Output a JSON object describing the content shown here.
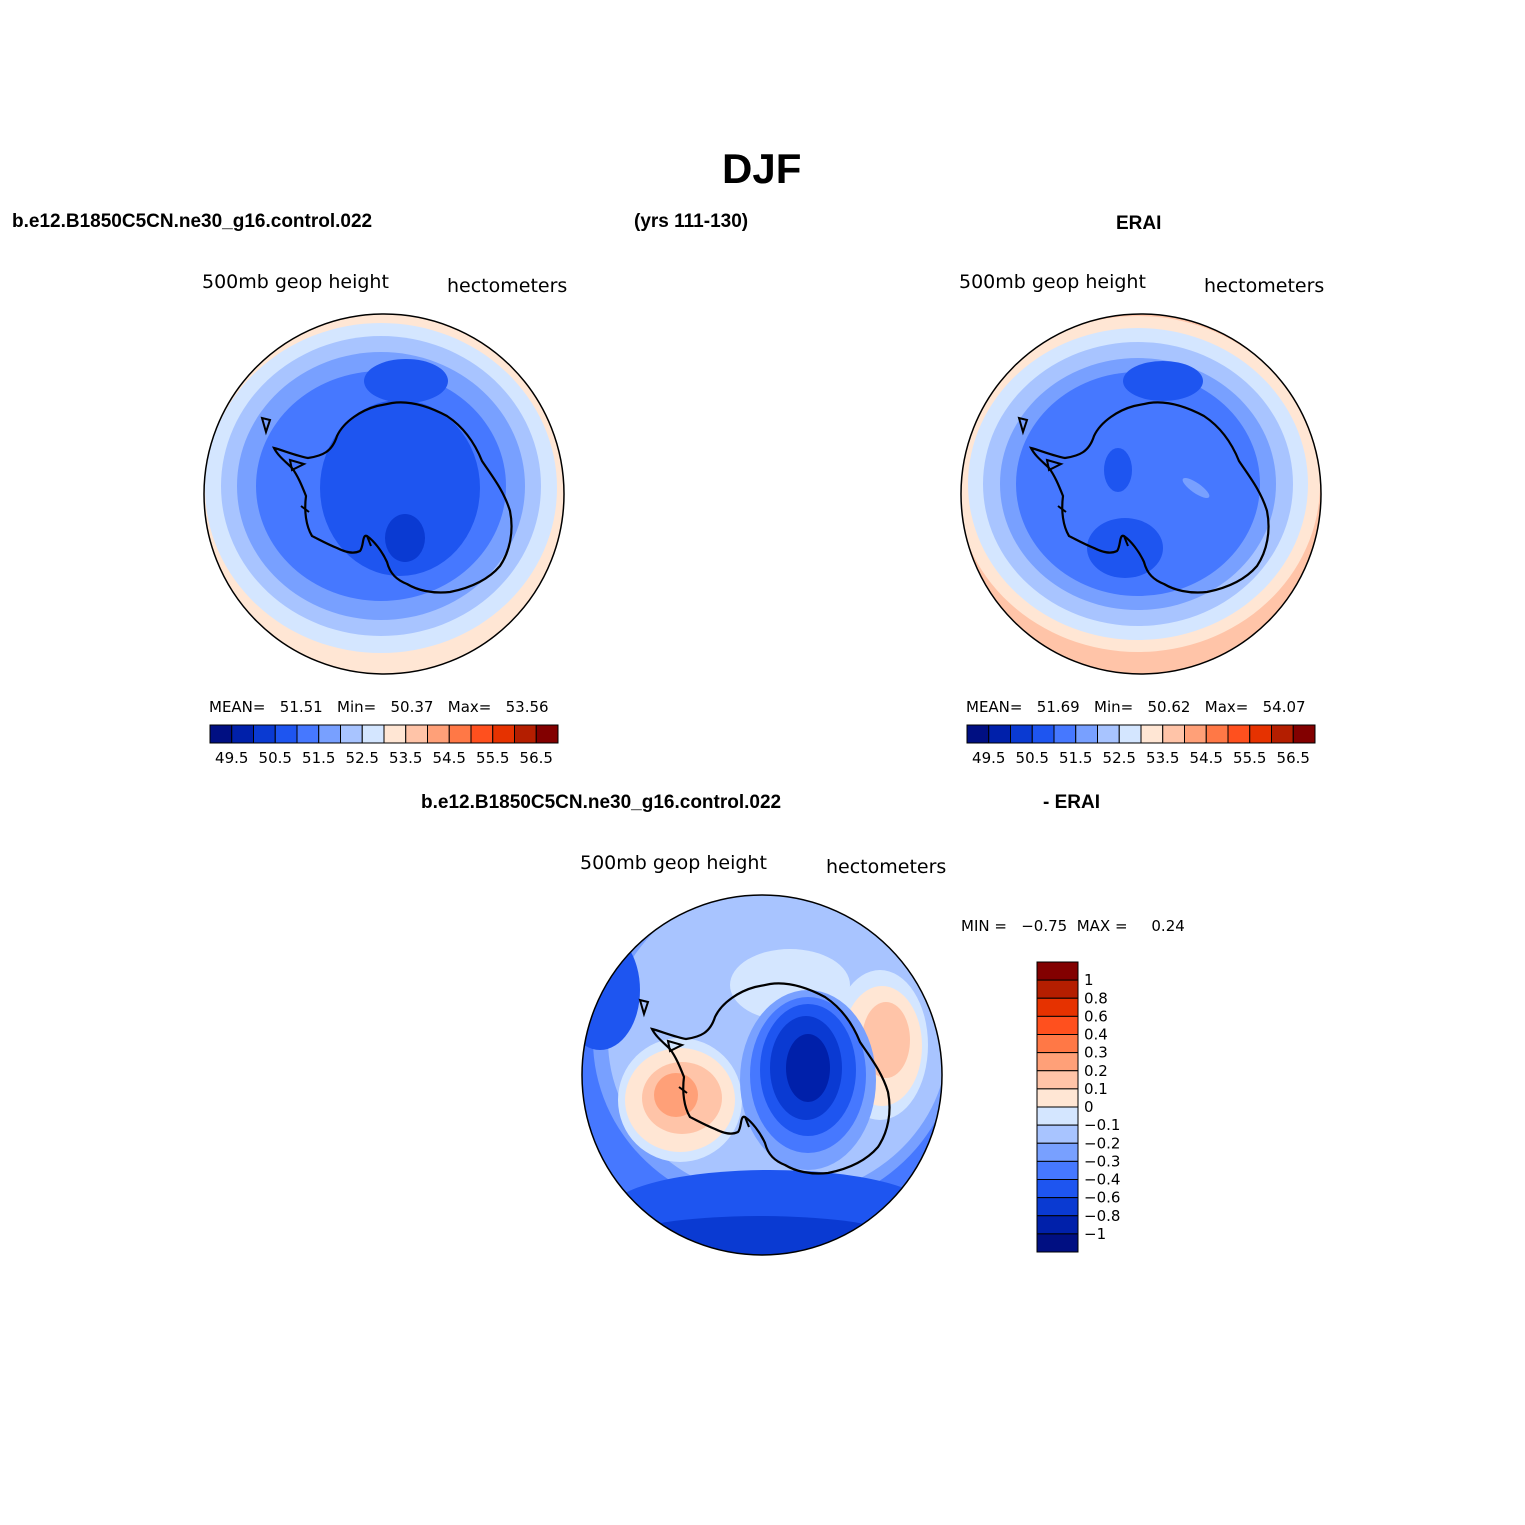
{
  "title": "DJF",
  "top_left": {
    "case": "b.e12.B1850C5CN.ne30_g16.control.022",
    "years": "(yrs 111-130)"
  },
  "top_right": {
    "case": "ERAI"
  },
  "bottom": {
    "case": "b.e12.B1850C5CN.ne30_g16.control.022",
    "minus": "- ERAI"
  },
  "panels": {
    "model": {
      "variable": "500mb  geop  height",
      "units": "hectometers",
      "stats": "MEAN=   51.51   Min=   50.37   Max=   53.56"
    },
    "obs": {
      "variable": "500mb  geop  height",
      "units": "hectometers",
      "stats": "MEAN=   51.69   Min=   50.62   Max=   54.07"
    },
    "diff": {
      "variable": "500mb  geop  height",
      "units": "hectometers",
      "stats": "MIN =   −0.75  MAX =     0.24"
    }
  },
  "abs_colorbar": {
    "colors": [
      "#000f82",
      "#0020aa",
      "#0a3ad2",
      "#1e55f0",
      "#4678ff",
      "#78a0ff",
      "#a8c4ff",
      "#d4e6ff",
      "#ffe6d4",
      "#ffc4a8",
      "#ffa078",
      "#ff7846",
      "#ff501e",
      "#e63200",
      "#b41e00",
      "#820000"
    ],
    "labels": [
      "49.5",
      "50.5",
      "51.5",
      "52.5",
      "53.5",
      "54.5",
      "55.5",
      "56.5"
    ]
  },
  "diff_colorbar": {
    "colors": [
      "#820000",
      "#b41e00",
      "#e63200",
      "#ff501e",
      "#ff7846",
      "#ffa078",
      "#ffc4a8",
      "#ffe6d4",
      "#d4e6ff",
      "#a8c4ff",
      "#78a0ff",
      "#4678ff",
      "#1e55f0",
      "#0a3ad2",
      "#0020aa",
      "#000f82"
    ],
    "labels": [
      "1",
      "0.8",
      "0.6",
      "0.4",
      "0.3",
      "0.2",
      "0.1",
      "0",
      "−0.1",
      "−0.2",
      "−0.3",
      "−0.4",
      "−0.6",
      "−0.8",
      "−1"
    ]
  }
}
